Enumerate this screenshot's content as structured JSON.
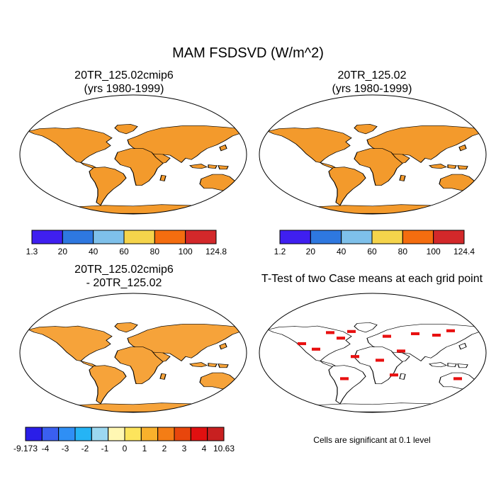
{
  "title": "MAM FSDSVD (W/m^2)",
  "panels": [
    {
      "id": "p1",
      "title_line1": "20TR_125.02cmip6",
      "title_line2": "(yrs 1980-1999)",
      "colorbar": {
        "labels": [
          "1.3",
          "20",
          "40",
          "60",
          "80",
          "100",
          "124.8"
        ],
        "colors": [
          "#3f1ff0",
          "#2e78e0",
          "#7ec0ea",
          "#f5d44b",
          "#f46d0f",
          "#d3282a"
        ]
      }
    },
    {
      "id": "p2",
      "title_line1": "20TR_125.02",
      "title_line2": "(yrs 1980-1999)",
      "colorbar": {
        "labels": [
          "1.2",
          "20",
          "40",
          "60",
          "80",
          "100",
          "124.4"
        ],
        "colors": [
          "#3f1ff0",
          "#2e78e0",
          "#7ec0ea",
          "#f5d44b",
          "#f46d0f",
          "#d3282a"
        ]
      }
    },
    {
      "id": "p3",
      "title_line1": "20TR_125.02cmip6",
      "title_line2": "- 20TR_125.02",
      "colorbar": {
        "labels": [
          "-9.173",
          "-4",
          "-3",
          "-2",
          "-1",
          "0",
          "1",
          "2",
          "3",
          "4",
          "10.63"
        ],
        "colors": [
          "#2a1ee8",
          "#3a5ff0",
          "#2f8ff5",
          "#25b4f5",
          "#9cd8f0",
          "#fff7b3",
          "#fde45c",
          "#f9b12c",
          "#f47d15",
          "#e8460c",
          "#e01010",
          "#c82020"
        ]
      }
    },
    {
      "id": "p4",
      "title_line1": "T-Test of two Case means at each grid point",
      "note": "Cells are significant at 0.1 level"
    }
  ]
}
